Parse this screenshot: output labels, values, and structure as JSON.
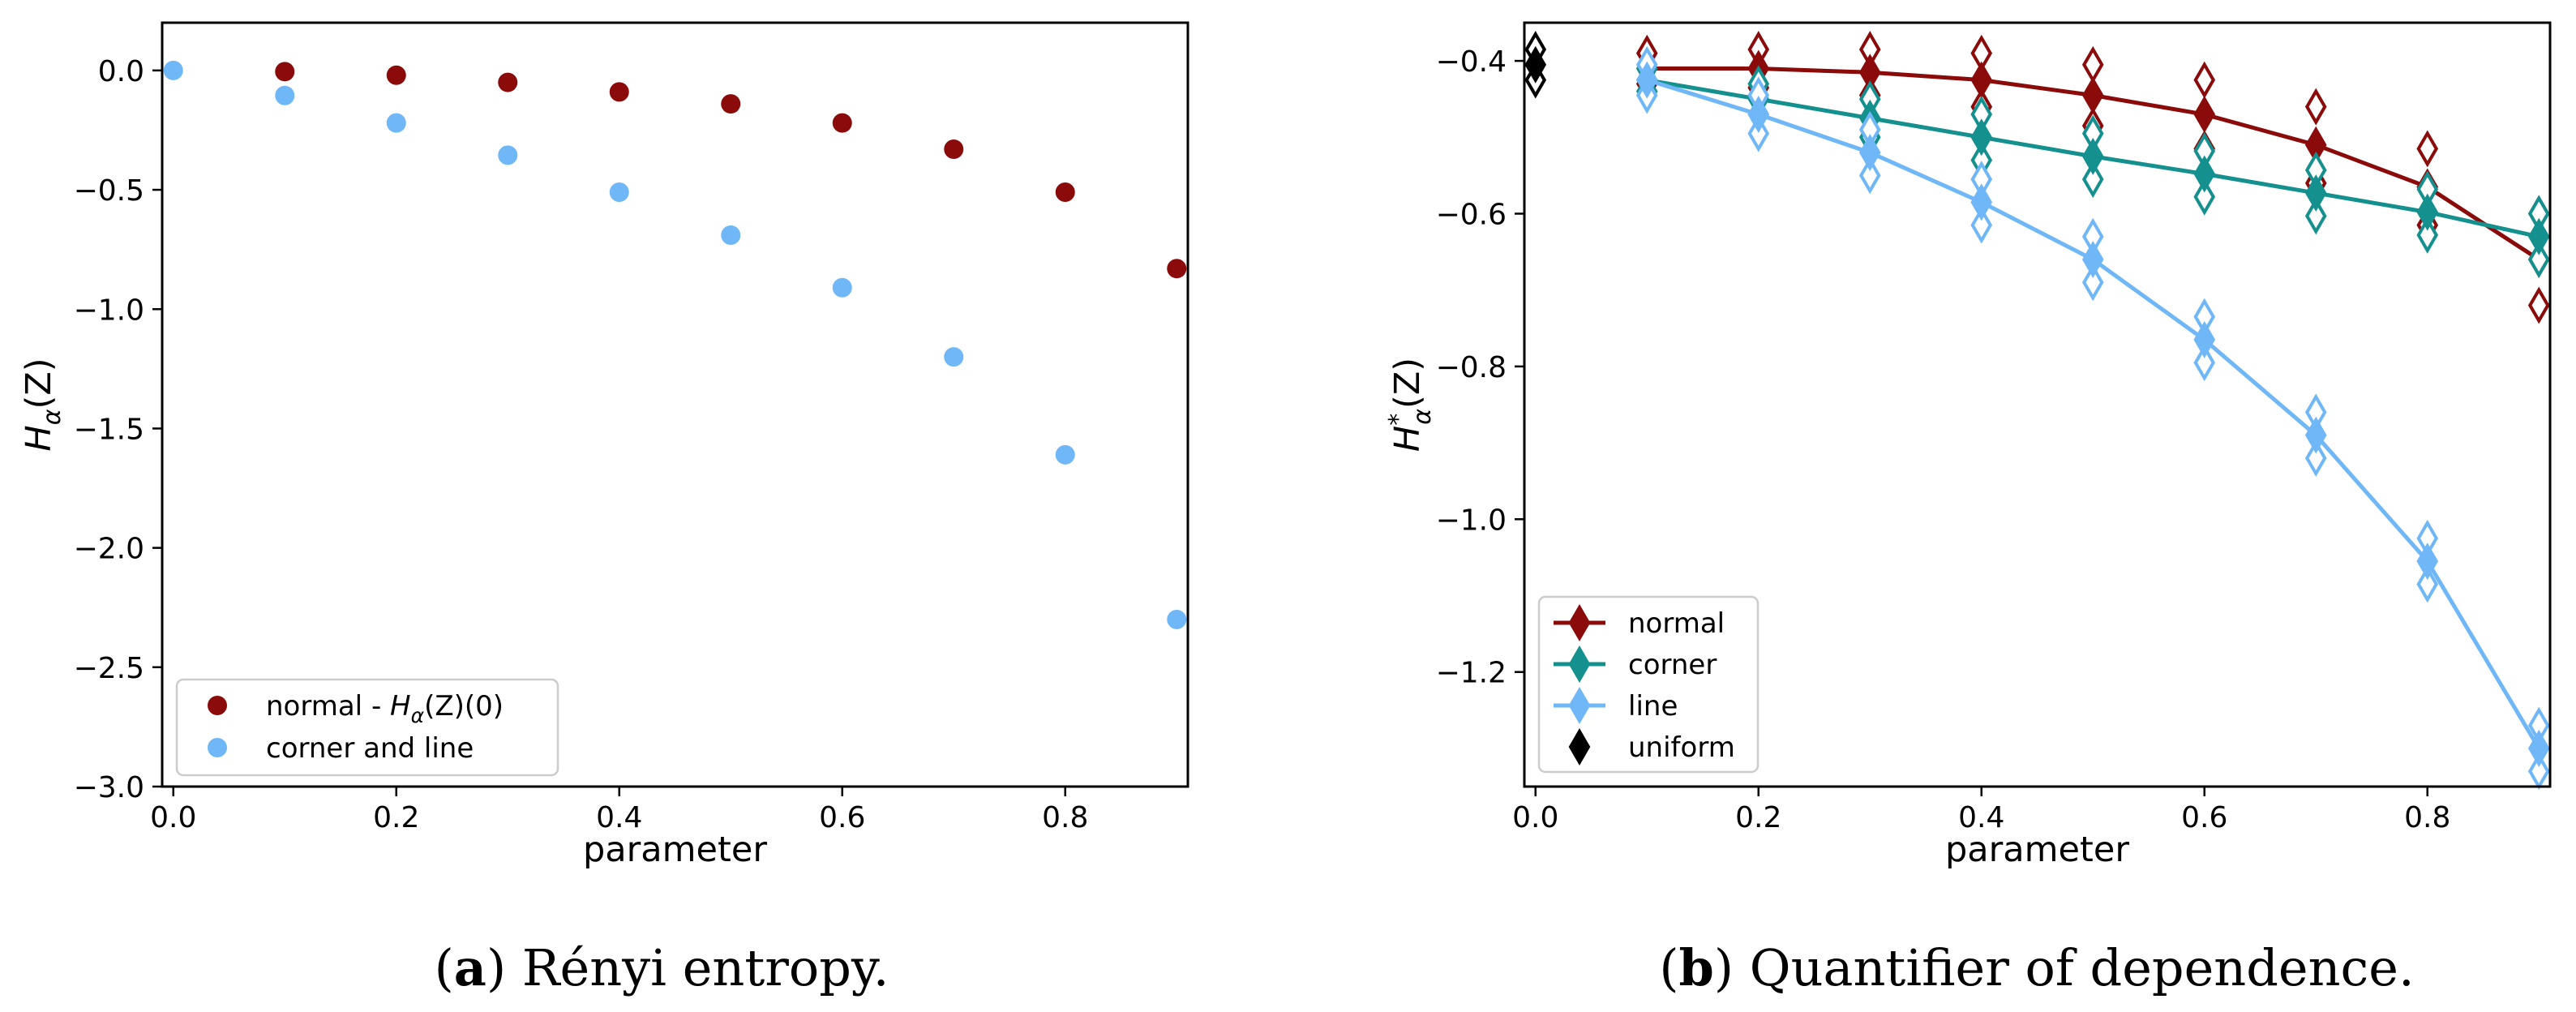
{
  "chart_data": [
    {
      "type": "scatter",
      "panel": "a",
      "caption_letter": "a",
      "caption_text": "Rényi entropy.",
      "xlabel": "parameter",
      "ylabel_base": "H",
      "ylabel_sub": "α",
      "ylabel_arg": "(Z)",
      "xlim": [
        -0.01,
        0.91
      ],
      "ylim": [
        -3.0,
        0.2
      ],
      "xticks": [
        0.0,
        0.2,
        0.4,
        0.6,
        0.8
      ],
      "xtick_labels": [
        "0.0",
        "0.2",
        "0.4",
        "0.6",
        "0.8"
      ],
      "yticks": [
        0.0,
        -0.5,
        -1.0,
        -1.5,
        -2.0,
        -2.5,
        -3.0
      ],
      "ytick_labels": [
        "0.0",
        "−0.5",
        "−1.0",
        "−1.5",
        "−2.0",
        "−2.5",
        "−3.0"
      ],
      "legend_position": "lower-left",
      "series": [
        {
          "name": "normal - H_α(Z)(0)",
          "legend_prefix": "normal - ",
          "legend_math": "H",
          "legend_sub": "α",
          "legend_suffix": "(Z)(0)",
          "color": "#8b0a0a",
          "x": [
            0.1,
            0.2,
            0.3,
            0.4,
            0.5,
            0.6,
            0.7,
            0.8,
            0.9
          ],
          "y": [
            -0.005,
            -0.02,
            -0.05,
            -0.09,
            -0.14,
            -0.22,
            -0.33,
            -0.51,
            -0.83
          ]
        },
        {
          "name": "corner and line",
          "legend_prefix": "corner and line",
          "color": "#6fb7f7",
          "x": [
            0.0,
            0.1,
            0.2,
            0.3,
            0.4,
            0.5,
            0.6,
            0.7,
            0.8,
            0.9
          ],
          "y": [
            0.0,
            -0.105,
            -0.22,
            -0.355,
            -0.51,
            -0.69,
            -0.91,
            -1.2,
            -1.61,
            -2.3
          ]
        }
      ]
    },
    {
      "type": "line",
      "panel": "b",
      "caption_letter": "b",
      "caption_text": "Quantifier of dependence.",
      "xlabel": "parameter",
      "ylabel_base": "H",
      "ylabel_sup": "*",
      "ylabel_sub": "α",
      "ylabel_arg": "(Z)",
      "xlim": [
        -0.01,
        0.91
      ],
      "ylim": [
        -1.35,
        -0.35
      ],
      "xticks": [
        0.0,
        0.2,
        0.4,
        0.6,
        0.8
      ],
      "xtick_labels": [
        "0.0",
        "0.2",
        "0.4",
        "0.6",
        "0.8"
      ],
      "yticks": [
        -0.4,
        -0.6,
        -0.8,
        -1.0,
        -1.2
      ],
      "ytick_labels": [
        "−0.4",
        "−0.6",
        "−0.8",
        "−1.0",
        "−1.2"
      ],
      "legend_position": "lower-left",
      "series": [
        {
          "name": "normal",
          "color": "#8b0a0a",
          "x": [
            0.1,
            0.2,
            0.3,
            0.4,
            0.5,
            0.6,
            0.7,
            0.8,
            0.9
          ],
          "y": [
            -0.41,
            -0.41,
            -0.415,
            -0.425,
            -0.445,
            -0.47,
            -0.51,
            -0.565,
            -0.66
          ],
          "spread": [
            0.02,
            0.025,
            0.03,
            0.035,
            0.04,
            0.045,
            0.05,
            0.05,
            0.06
          ]
        },
        {
          "name": "corner",
          "color": "#14908e",
          "x": [
            0.1,
            0.2,
            0.3,
            0.4,
            0.5,
            0.6,
            0.7,
            0.8,
            0.9
          ],
          "y": [
            -0.425,
            -0.45,
            -0.475,
            -0.5,
            -0.525,
            -0.548,
            -0.573,
            -0.598,
            -0.63
          ],
          "spread": [
            0.015,
            0.02,
            0.025,
            0.03,
            0.03,
            0.03,
            0.03,
            0.03,
            0.03
          ]
        },
        {
          "name": "line",
          "color": "#6fb7f7",
          "x": [
            0.1,
            0.2,
            0.3,
            0.4,
            0.5,
            0.6,
            0.7,
            0.8,
            0.9
          ],
          "y": [
            -0.425,
            -0.47,
            -0.52,
            -0.585,
            -0.66,
            -0.765,
            -0.89,
            -1.055,
            -1.3
          ],
          "spread": [
            0.02,
            0.025,
            0.03,
            0.03,
            0.03,
            0.03,
            0.03,
            0.03,
            0.03
          ]
        },
        {
          "name": "uniform",
          "color": "#000000",
          "markers_only": true,
          "x": [
            0.0
          ],
          "y": [
            -0.405
          ],
          "spread": [
            0.02
          ]
        }
      ]
    }
  ]
}
